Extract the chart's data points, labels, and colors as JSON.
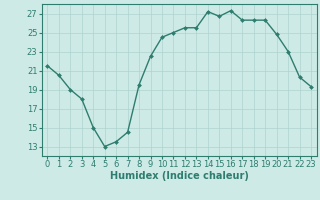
{
  "x": [
    0,
    1,
    2,
    3,
    4,
    5,
    6,
    7,
    8,
    9,
    10,
    11,
    12,
    13,
    14,
    15,
    16,
    17,
    18,
    19,
    20,
    21,
    22,
    23
  ],
  "y": [
    21.5,
    20.5,
    19.0,
    18.0,
    15.0,
    13.0,
    13.5,
    14.5,
    19.5,
    22.5,
    24.5,
    25.0,
    25.5,
    25.5,
    27.2,
    26.7,
    27.3,
    26.3,
    26.3,
    26.3,
    24.8,
    23.0,
    20.3,
    19.3
  ],
  "line_color": "#2e7d6e",
  "marker": "D",
  "markersize": 2.0,
  "linewidth": 1.0,
  "bg_color": "#cdeae7",
  "grid_color": "#aed4d0",
  "xlabel": "Humidex (Indice chaleur)",
  "xlabel_fontsize": 7.0,
  "tick_fontsize": 6.0,
  "yticks": [
    13,
    15,
    17,
    19,
    21,
    23,
    25,
    27
  ],
  "xticks": [
    0,
    1,
    2,
    3,
    4,
    5,
    6,
    7,
    8,
    9,
    10,
    11,
    12,
    13,
    14,
    15,
    16,
    17,
    18,
    19,
    20,
    21,
    22,
    23
  ],
  "xlim": [
    -0.5,
    23.5
  ],
  "ylim": [
    12.0,
    28.0
  ]
}
